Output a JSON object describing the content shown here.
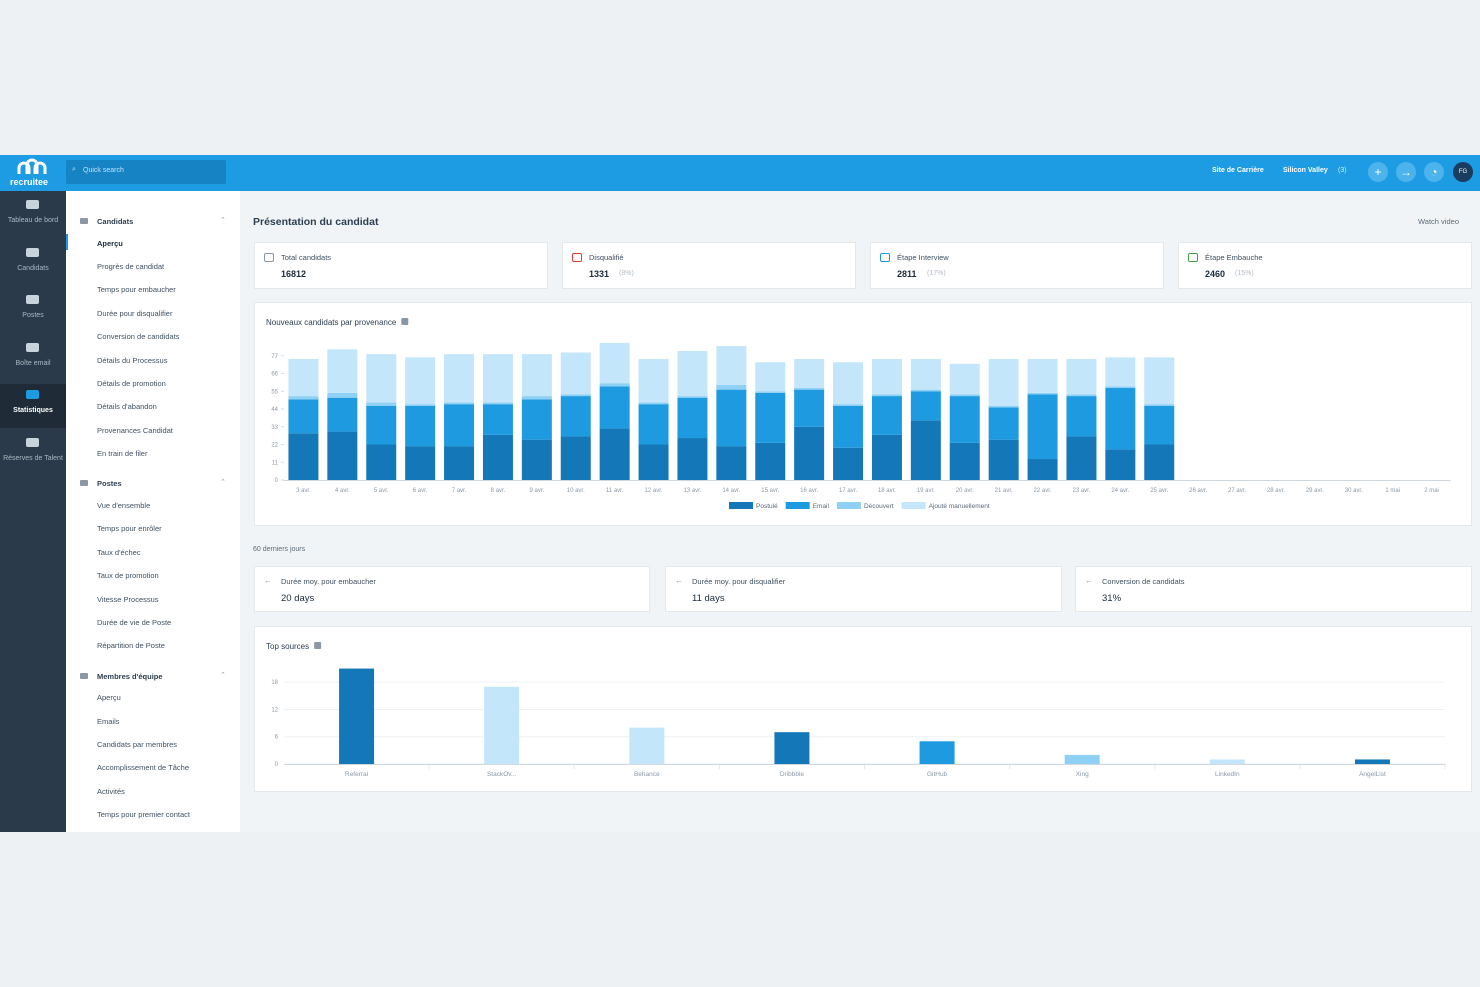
{
  "topbar": {
    "logo": "recruitee",
    "search": "Quick search",
    "career_site": "Site de Carrière",
    "company": "Silicon Valley",
    "company_count": "(3)",
    "avatar": "FG"
  },
  "sidebar": {
    "items": [
      "Tableau de bord",
      "Candidats",
      "Postes",
      "Boîte email",
      "Statistiques",
      "Réserves de Talent"
    ],
    "active_index": 4
  },
  "nav": [
    {
      "title": "Candidats",
      "active_index": 0,
      "items": [
        "Aperçu",
        "Progrès de candidat",
        "Temps pour embaucher",
        "Durée pour disqualifier",
        "Conversion de candidats",
        "Détails du Processus",
        "Détails de promotion",
        "Détails d'abandon",
        "Provenances Candidat",
        "En train de filer"
      ]
    },
    {
      "title": "Postes",
      "items": [
        "Vue d'ensemble",
        "Temps pour enrôler",
        "Taux d'échec",
        "Taux de promotion",
        "Vitesse Processus",
        "Durée de vie de Poste",
        "Répartition de Poste"
      ]
    },
    {
      "title": "Membres d'équipe",
      "items": [
        "Aperçu",
        "Emails",
        "Candidats par membres",
        "Accomplissement de Tâche",
        "Activités",
        "Temps pour premier contact"
      ]
    }
  ],
  "content": {
    "title": "Présentation du candidat",
    "video": "Watch video",
    "stats": [
      {
        "label": "Total candidats",
        "value": 16812
      },
      {
        "label": "Disqualifié",
        "value": 1331,
        "share": "(8%)"
      },
      {
        "label": "Étape Interview",
        "value": 2811,
        "share": "(17%)"
      },
      {
        "label": "Étape Embauche",
        "value": 2460,
        "share": "(15%)"
      }
    ],
    "period": "60 derniers jours",
    "metrics": [
      {
        "label": "Durée moy. pour embaucher",
        "value": "20 days"
      },
      {
        "label": "Durée moy. pour disqualifier",
        "value": "11 days"
      },
      {
        "label": "Conversion de candidats",
        "value": "31%"
      }
    ]
  },
  "chart_data": [
    {
      "type": "stacked_bar",
      "title": "Nouveaux candidats par provenance",
      "categories": [
        "3 avr.",
        "4 avr.",
        "5 avr.",
        "6 avr.",
        "7 avr.",
        "8 avr.",
        "9 avr.",
        "10 avr.",
        "11 avr.",
        "12 avr.",
        "13 avr.",
        "14 avr.",
        "15 avr.",
        "16 avr.",
        "17 avr.",
        "18 avr.",
        "19 avr.",
        "20 avr.",
        "21 avr.",
        "22 avr.",
        "23 avr.",
        "24 avr.",
        "25 avr.",
        "26 avr.",
        "27 avr.",
        "28 avr.",
        "29 avr.",
        "30 avr.",
        "1 mai",
        "2 mai"
      ],
      "series": [
        {
          "name": "Postulé",
          "color": "#1478b8",
          "values": [
            29,
            30,
            22,
            21,
            21,
            28,
            25,
            27,
            32,
            22,
            26,
            21,
            23,
            33,
            20,
            28,
            37,
            23,
            25,
            13,
            27,
            19,
            22,
            null,
            null,
            null,
            null,
            null,
            null,
            null
          ]
        },
        {
          "name": "Email",
          "color": "#1e9be0",
          "values": [
            21,
            21,
            24,
            25,
            26,
            19,
            25,
            25,
            26,
            25,
            25,
            35,
            31,
            23,
            26,
            24,
            18,
            29,
            20,
            40,
            25,
            38,
            24,
            null,
            null,
            null,
            null,
            null,
            null,
            null
          ]
        },
        {
          "name": "Découvert",
          "color": "#8fd0f5",
          "values": [
            2,
            3,
            2,
            1,
            1,
            1,
            2,
            1,
            2,
            1,
            1,
            3,
            1,
            1,
            1,
            1,
            1,
            1,
            1,
            1,
            1,
            1,
            1,
            null,
            null,
            null,
            null,
            null,
            null,
            null
          ]
        },
        {
          "name": "Ajouté manuellement",
          "color": "#c4e6fb",
          "values": [
            23,
            27,
            30,
            29,
            30,
            30,
            26,
            26,
            25,
            27,
            28,
            24,
            18,
            18,
            26,
            22,
            19,
            19,
            29,
            21,
            22,
            18,
            29,
            null,
            null,
            null,
            null,
            null,
            null,
            null
          ]
        }
      ],
      "ylim": [
        0,
        88
      ],
      "yticks": [
        0,
        11,
        22,
        33,
        44,
        55,
        66,
        77
      ],
      "grid": false,
      "legend": "bottom"
    },
    {
      "type": "bar",
      "title": "Top sources",
      "categories": [
        "Referral",
        "StackOv...",
        "Behance",
        "Dribbble",
        "GitHub",
        "Xing",
        "LinkedIn",
        "AngelList"
      ],
      "values": [
        21,
        17,
        8,
        7,
        5,
        2,
        1,
        1
      ],
      "colors": [
        "#1478b8",
        "#c4e6fb",
        "#c4e6fb",
        "#1478b8",
        "#1e9be0",
        "#8fd0f5",
        "#c4e6fb",
        "#1478b8"
      ],
      "ylim": [
        0,
        22
      ],
      "yticks": [
        0,
        6,
        12,
        18
      ],
      "grid": true
    }
  ]
}
